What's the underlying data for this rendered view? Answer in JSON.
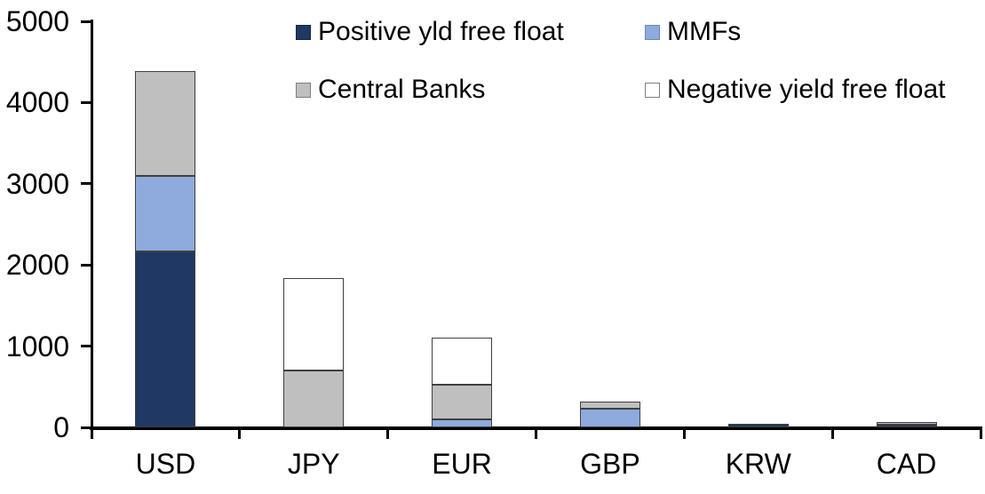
{
  "chart_data": {
    "type": "bar",
    "stacked": true,
    "title": "",
    "xlabel": "",
    "ylabel": "",
    "categories": [
      "USD",
      "JPY",
      "EUR",
      "GBP",
      "KRW",
      "CAD"
    ],
    "series": [
      {
        "name": "Positive yld free float",
        "color": "#1F3864",
        "swatch_border": "#16233F",
        "values": [
          2170,
          0,
          0,
          0,
          45,
          35
        ]
      },
      {
        "name": "MMFs",
        "color": "#8FAADC",
        "swatch_border": "#6688C4",
        "values": [
          930,
          0,
          100,
          230,
          0,
          0
        ]
      },
      {
        "name": "Central Banks",
        "color": "#BFBFBF",
        "swatch_border": "#7F7F7F",
        "values": [
          1290,
          700,
          430,
          90,
          0,
          30
        ]
      },
      {
        "name": "Negative yield free float",
        "color": "#FFFFFF",
        "swatch_border": "#7F7F7F",
        "values": [
          0,
          1140,
          580,
          0,
          0,
          0
        ]
      }
    ],
    "totals": {
      "USD": 4390,
      "JPY": 1840,
      "EUR": 1110,
      "GBP": 320,
      "KRW": 45,
      "CAD": 65
    },
    "ylim": [
      0,
      5000
    ],
    "y_ticks": [
      0,
      1000,
      2000,
      3000,
      4000,
      5000
    ],
    "grid": false,
    "legend_position": "top",
    "colors": {
      "axis": "#000000",
      "bar_border": "#3F3F3F",
      "text": "#000000",
      "background": "#FFFFFF"
    }
  }
}
